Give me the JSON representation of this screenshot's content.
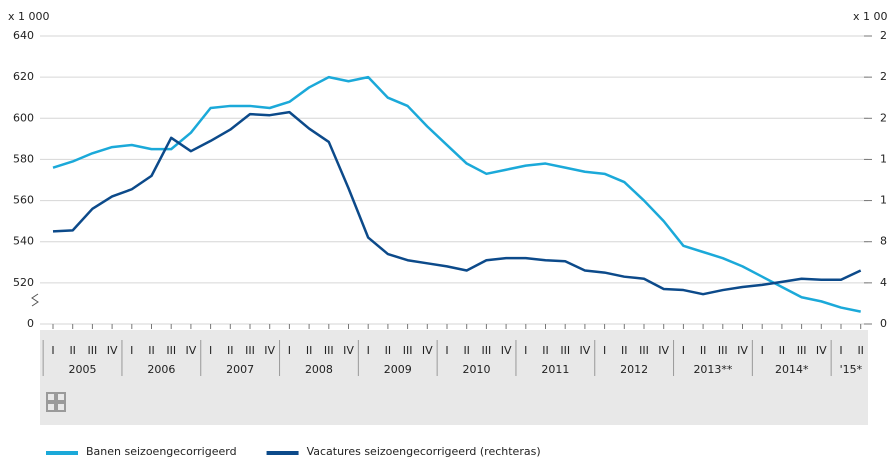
{
  "chart_data": {
    "type": "line",
    "y_unit": "x 1 000",
    "y2_unit": "x 1 00",
    "categories": [
      "I",
      "II",
      "III",
      "IV",
      "I",
      "II",
      "III",
      "IV",
      "I",
      "II",
      "III",
      "IV",
      "I",
      "II",
      "III",
      "IV",
      "I",
      "II",
      "III",
      "IV",
      "I",
      "II",
      "III",
      "IV",
      "I",
      "II",
      "III",
      "IV",
      "I",
      "II",
      "III",
      "IV",
      "I",
      "II",
      "III",
      "IV",
      "I",
      "II",
      "III",
      "IV",
      "I",
      "II"
    ],
    "years": [
      "2005",
      "2006",
      "2007",
      "2008",
      "2009",
      "2010",
      "2011",
      "2012",
      "2013**",
      "2014*",
      "'15*"
    ],
    "series": [
      {
        "name": "Banen seizoengecorrigeerd",
        "color": "#1ba9d9",
        "values": [
          576,
          579,
          583,
          586,
          587,
          585,
          585,
          593,
          605,
          606,
          606,
          605,
          608,
          615,
          620,
          618,
          620,
          610,
          606,
          596,
          587,
          578,
          573,
          575,
          577,
          578,
          576,
          574,
          573,
          569,
          560,
          550,
          538,
          535,
          532,
          528,
          523,
          518,
          513,
          511,
          508,
          506
        ]
      },
      {
        "name": "Vacatures seizoengecorrigeerd (rechteras)",
        "color": "#0c4a8a",
        "axis": "y2",
        "values": [
          90,
          91,
          112,
          124,
          131,
          144,
          181,
          168,
          178,
          189,
          204,
          203,
          206,
          190,
          177,
          132,
          84,
          68,
          62,
          59,
          56,
          52,
          62,
          64,
          64,
          62,
          61,
          52,
          50,
          46,
          44,
          34,
          33,
          29,
          33,
          36,
          38,
          41,
          44,
          43,
          43,
          52
        ]
      }
    ],
    "ylim": [
      500,
      640
    ],
    "yticks": [
      {
        "value": 500,
        "label": "0"
      },
      520,
      540,
      560,
      580,
      600,
      620,
      640
    ],
    "y2lim": [
      0,
      280
    ],
    "y2ticks": [
      0,
      {
        "value": 40,
        "label": "4"
      },
      {
        "value": 80,
        "label": "8"
      },
      {
        "value": 120,
        "label": "1"
      },
      {
        "value": 160,
        "label": "1"
      },
      {
        "value": 200,
        "label": "2"
      },
      {
        "value": 240,
        "label": "2"
      },
      {
        "value": 280,
        "label": "2"
      }
    ],
    "grid": true
  }
}
